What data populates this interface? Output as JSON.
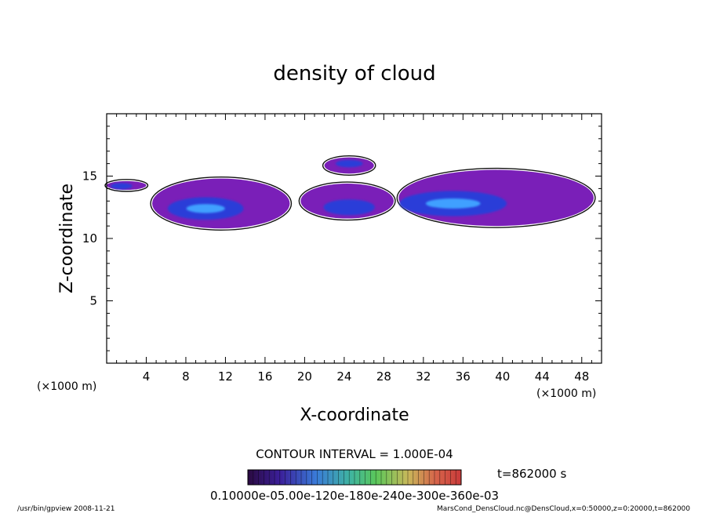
{
  "chart_data": {
    "type": "heatmap",
    "title": "density of cloud",
    "xlabel": "X-coordinate",
    "ylabel": "Z-coordinate",
    "x_unit": "(×1000 m)",
    "y_unit": "(×1000 m)",
    "xlim": [
      0,
      50
    ],
    "ylim": [
      0,
      20
    ],
    "x_ticks": [
      4,
      8,
      12,
      16,
      20,
      24,
      28,
      32,
      36,
      40,
      44,
      48
    ],
    "y_ticks": [
      5,
      10,
      15
    ],
    "contour_interval": "CONTOUR INTERVAL = 1.000E-04",
    "time_label": "t=862000 s",
    "colorbar_labels": "0.10000e-05.00e-120e-180e-240e-300e-360e-03",
    "colors": {
      "low": "#7a1fb8",
      "mid": "#2a3cd8",
      "high": "#3fa0ff",
      "outline": "#111111"
    },
    "regions": [
      {
        "x": [
          4.6,
          18.5
        ],
        "z": [
          10.8,
          14.8
        ],
        "peak_x": 10,
        "peak_z": 12.4
      },
      {
        "x": [
          0.0,
          4.0
        ],
        "z": [
          13.9,
          14.6
        ],
        "peak_x": 1.5,
        "peak_z": 14.2
      },
      {
        "x": [
          19.6,
          29.0
        ],
        "z": [
          11.6,
          14.4
        ],
        "peak_x": 24.5,
        "peak_z": 12.5
      },
      {
        "x": [
          22.0,
          27.0
        ],
        "z": [
          15.2,
          16.5
        ],
        "peak_x": 24.5,
        "peak_z": 16.0
      },
      {
        "x": [
          29.5,
          49.2
        ],
        "z": [
          11.0,
          15.5
        ],
        "peak_x": 35,
        "peak_z": 12.8
      }
    ]
  },
  "footer": {
    "left": "/usr/bin/gpview   2008-11-21",
    "right": "MarsCond_DensCloud.nc@DensCloud,x=0:50000,z=0:20000,t=862000"
  }
}
